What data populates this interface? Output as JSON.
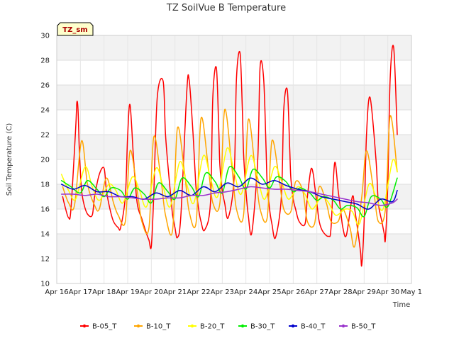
{
  "chart_data": {
    "type": "line",
    "title": "TZ SoilVue B Temperature",
    "xlabel": "Time",
    "ylabel": "Soil Temperature (C)",
    "badge": "TZ_sm",
    "ylim": [
      10,
      30
    ],
    "yticks": [
      10,
      12,
      14,
      16,
      18,
      20,
      22,
      24,
      26,
      28,
      30
    ],
    "xlim": [
      0,
      15
    ],
    "xticks": [
      0,
      1,
      2,
      3,
      4,
      5,
      6,
      7,
      8,
      9,
      10,
      11,
      12,
      13,
      14,
      15
    ],
    "xtick_labels": [
      "Apr 16",
      "Apr 17",
      "Apr 18",
      "Apr 19",
      "Apr 20",
      "Apr 21",
      "Apr 22",
      "Apr 23",
      "Apr 24",
      "Apr 25",
      "Apr 26",
      "Apr 27",
      "Apr 28",
      "Apr 29",
      "Apr 30",
      "May 1"
    ],
    "x_units": "days since Apr 16 00:00",
    "series": [
      {
        "name": "B-05_T",
        "color": "#ff0000",
        "x": [
          0.25,
          0.35,
          0.5,
          0.6,
          0.8,
          0.85,
          0.9,
          0.95,
          1.0,
          1.05,
          1.15,
          1.3,
          1.5,
          1.6,
          1.8,
          2.0,
          2.1,
          2.25,
          2.4,
          2.6,
          2.7,
          2.9,
          3.0,
          3.1,
          3.25,
          3.4,
          3.6,
          3.8,
          3.9,
          4.0,
          4.1,
          4.25,
          4.5,
          4.6,
          4.75,
          4.85,
          4.9,
          5.0,
          5.1,
          5.25,
          5.5,
          5.6,
          5.75,
          5.85,
          5.9,
          6.0,
          6.1,
          6.25,
          6.5,
          6.6,
          6.75,
          6.85,
          6.9,
          7.0,
          7.1,
          7.25,
          7.5,
          7.6,
          7.75,
          7.85,
          7.9,
          8.0,
          8.1,
          8.25,
          8.5,
          8.6,
          8.75,
          8.85,
          8.9,
          9.0,
          9.1,
          9.25,
          9.5,
          9.6,
          9.75,
          9.85,
          9.9,
          10.0,
          10.1,
          10.25,
          10.5,
          10.6,
          10.75,
          10.85,
          10.9,
          11.0,
          11.1,
          11.25,
          11.5,
          11.6,
          11.75,
          11.9,
          12.0,
          12.1,
          12.25,
          12.5,
          12.6,
          12.75,
          12.85,
          12.9,
          13.0,
          13.1,
          13.25,
          13.5,
          13.6,
          13.75,
          13.85,
          13.9,
          14.0,
          14.1,
          14.25,
          14.4
        ],
        "y": [
          17.0,
          16.2,
          15.3,
          16.0,
          22.5,
          24.6,
          24.0,
          21.0,
          19.0,
          17.5,
          16.4,
          15.6,
          15.5,
          17.0,
          18.8,
          19.3,
          17.5,
          16.0,
          15.0,
          14.5,
          14.5,
          17.0,
          22.0,
          24.4,
          20.0,
          16.5,
          15.2,
          14.0,
          13.5,
          13.0,
          17.0,
          25.0,
          26.3,
          22.0,
          18.5,
          16.5,
          15.5,
          14.5,
          13.7,
          15.5,
          25.5,
          26.4,
          22.5,
          19.0,
          17.5,
          16.0,
          15.0,
          14.3,
          16.5,
          25.0,
          27.4,
          22.5,
          19.5,
          17.5,
          16.5,
          15.3,
          18.5,
          26.5,
          28.6,
          24.0,
          20.5,
          17.5,
          15.5,
          14.1,
          20.0,
          27.5,
          26.5,
          21.0,
          18.0,
          16.0,
          14.8,
          13.7,
          17.0,
          24.0,
          25.6,
          21.0,
          18.5,
          16.8,
          16.0,
          15.0,
          14.8,
          17.0,
          19.2,
          18.8,
          18.0,
          16.5,
          15.0,
          14.2,
          13.8,
          14.5,
          19.7,
          17.5,
          16.0,
          14.5,
          13.9,
          17.0,
          16.0,
          14.0,
          12.5,
          11.5,
          15.0,
          22.0,
          25.0,
          20.0,
          16.5,
          15.0,
          14.0,
          13.6,
          18.0,
          26.5,
          29.0,
          22.0
        ],
        "smooth": true
      },
      {
        "name": "B-10_T",
        "color": "#ffa500",
        "x": [
          0.25,
          0.5,
          0.75,
          1.05,
          1.3,
          1.6,
          1.8,
          2.1,
          2.4,
          2.6,
          2.9,
          3.1,
          3.4,
          3.6,
          3.9,
          4.1,
          4.4,
          4.6,
          4.9,
          5.1,
          5.4,
          5.6,
          5.9,
          6.1,
          6.4,
          6.6,
          6.9,
          7.1,
          7.4,
          7.6,
          7.9,
          8.1,
          8.4,
          8.6,
          8.9,
          9.1,
          9.4,
          9.6,
          9.9,
          10.1,
          10.4,
          10.6,
          10.9,
          11.1,
          11.4,
          11.6,
          11.9,
          12.1,
          12.4,
          12.6,
          12.9,
          13.1,
          13.4,
          13.6,
          13.9,
          14.1,
          14.4
        ],
        "y": [
          17.8,
          16.5,
          16.3,
          21.5,
          18.0,
          16.3,
          16.0,
          18.5,
          16.5,
          15.5,
          15.0,
          20.7,
          17.5,
          15.0,
          14.5,
          21.8,
          18.5,
          15.5,
          14.3,
          22.5,
          19.0,
          15.8,
          15.0,
          23.3,
          19.5,
          16.5,
          16.5,
          24.0,
          19.5,
          16.0,
          15.5,
          23.2,
          19.0,
          16.0,
          15.3,
          21.5,
          18.5,
          16.0,
          15.8,
          18.2,
          17.5,
          15.0,
          14.8,
          17.8,
          16.5,
          15.0,
          15.0,
          16.0,
          14.5,
          13.0,
          17.0,
          20.7,
          17.5,
          15.0,
          16.0,
          23.5,
          19.0
        ],
        "smooth": true
      },
      {
        "name": "B-20_T",
        "color": "#ffff00",
        "x": [
          0.2,
          0.5,
          0.8,
          1.2,
          1.5,
          1.8,
          2.2,
          2.5,
          2.8,
          3.2,
          3.5,
          3.8,
          4.2,
          4.5,
          4.8,
          5.2,
          5.5,
          5.8,
          6.2,
          6.5,
          6.8,
          7.2,
          7.5,
          7.8,
          8.2,
          8.5,
          8.8,
          9.2,
          9.5,
          9.8,
          10.2,
          10.5,
          10.8,
          11.2,
          11.5,
          11.8,
          12.2,
          12.5,
          12.8,
          13.2,
          13.5,
          13.8,
          14.2,
          14.4
        ],
        "y": [
          18.8,
          17.5,
          16.8,
          19.4,
          17.8,
          16.7,
          18.0,
          17.5,
          16.5,
          18.6,
          17.5,
          16.2,
          19.3,
          17.8,
          16.2,
          19.8,
          18.0,
          16.5,
          20.3,
          18.5,
          17.0,
          20.9,
          19.0,
          17.2,
          20.3,
          18.5,
          16.8,
          19.4,
          18.3,
          16.8,
          17.8,
          17.2,
          16.0,
          17.0,
          16.5,
          15.5,
          16.0,
          15.8,
          14.8,
          18.0,
          17.0,
          16.0,
          19.9,
          19.0
        ],
        "smooth": true
      },
      {
        "name": "B-30_T",
        "color": "#00ee00",
        "x": [
          0.2,
          0.6,
          1.0,
          1.3,
          1.7,
          2.0,
          2.3,
          2.7,
          3.0,
          3.3,
          3.7,
          4.0,
          4.3,
          4.7,
          5.0,
          5.3,
          5.7,
          6.0,
          6.3,
          6.7,
          7.0,
          7.3,
          7.7,
          8.0,
          8.3,
          8.7,
          9.0,
          9.3,
          9.7,
          10.0,
          10.3,
          10.7,
          11.0,
          11.3,
          11.7,
          12.0,
          12.3,
          12.7,
          13.0,
          13.3,
          13.7,
          14.0,
          14.4
        ],
        "y": [
          18.3,
          17.8,
          17.3,
          18.3,
          17.6,
          17.0,
          17.7,
          17.5,
          16.8,
          17.7,
          17.2,
          16.5,
          18.1,
          17.4,
          16.8,
          18.5,
          17.8,
          17.0,
          18.9,
          18.2,
          17.3,
          19.4,
          18.6,
          17.6,
          19.2,
          18.5,
          17.7,
          18.6,
          18.2,
          17.4,
          17.7,
          17.3,
          16.7,
          17.0,
          16.7,
          16.0,
          16.3,
          16.1,
          15.4,
          17.0,
          16.8,
          16.2,
          18.5
        ],
        "smooth": true
      },
      {
        "name": "B-40_T",
        "color": "#0000cc",
        "x": [
          0.2,
          0.7,
          1.2,
          1.7,
          2.2,
          2.7,
          3.2,
          3.7,
          4.2,
          4.7,
          5.2,
          5.7,
          6.2,
          6.7,
          7.2,
          7.7,
          8.2,
          8.7,
          9.2,
          9.7,
          10.2,
          10.7,
          11.2,
          11.7,
          12.2,
          12.7,
          13.2,
          13.7,
          14.2,
          14.4
        ],
        "y": [
          18.0,
          17.6,
          17.9,
          17.4,
          17.4,
          17.0,
          17.0,
          16.8,
          17.3,
          17.0,
          17.5,
          17.1,
          17.8,
          17.4,
          18.1,
          17.8,
          18.5,
          18.0,
          18.3,
          17.9,
          17.6,
          17.4,
          17.0,
          16.8,
          16.6,
          16.4,
          16.0,
          16.8,
          16.6,
          17.5
        ],
        "smooth": true
      },
      {
        "name": "B-50_T",
        "color": "#9933cc",
        "x": [
          0.2,
          0.7,
          1.2,
          1.7,
          2.2,
          2.7,
          3.2,
          3.7,
          4.2,
          4.7,
          5.2,
          5.7,
          6.2,
          6.7,
          7.2,
          7.7,
          8.2,
          8.7,
          9.2,
          9.7,
          10.2,
          10.7,
          11.2,
          11.7,
          12.2,
          12.7,
          13.2,
          13.7,
          14.2,
          14.4
        ],
        "y": [
          17.2,
          17.2,
          17.1,
          17.2,
          17.0,
          17.0,
          16.9,
          16.8,
          16.8,
          16.9,
          16.9,
          17.1,
          17.1,
          17.3,
          17.4,
          17.6,
          17.8,
          17.7,
          17.6,
          17.6,
          17.5,
          17.4,
          17.2,
          17.0,
          16.8,
          16.6,
          16.5,
          16.3,
          16.5,
          16.8
        ],
        "smooth": true
      }
    ]
  }
}
